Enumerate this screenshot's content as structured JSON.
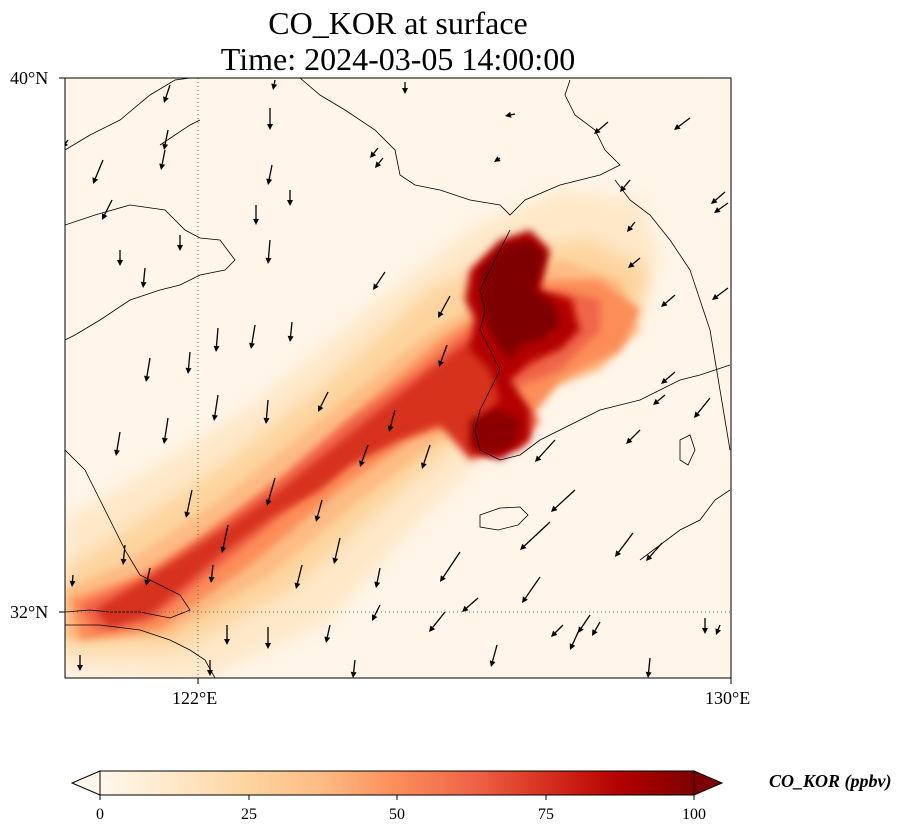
{
  "title_line1": "CO_KOR at surface",
  "title_line2": "Time: 2024-03-05 14:00:00",
  "map": {
    "lon_range": [
      120,
      130
    ],
    "lat_range": [
      31,
      40
    ],
    "gridlines": {
      "lons": [
        122
      ],
      "lats": [
        32
      ],
      "style": "dotted"
    },
    "lon_tick_labels": [
      "122°E",
      "130°E"
    ],
    "lat_tick_labels": [
      "40°N",
      "32°N"
    ],
    "field": "CO_KOR",
    "plume_description": "high-concentration band from Yangtze delta (SW) to Korean peninsula west coast (NE)",
    "wind_vectors": "black arrows, generally southward / southwestward"
  },
  "colorbar": {
    "label": "CO_KOR (ppbv)",
    "min": 0,
    "max": 100,
    "ticks": [
      "0",
      "25",
      "50",
      "75",
      "100"
    ],
    "extend": "both",
    "colormap": "OrRd",
    "colors": [
      "#fff7ec",
      "#fee8c8",
      "#fdd49e",
      "#fdbb84",
      "#fc8d59",
      "#ef6548",
      "#d7301f",
      "#b30000",
      "#7f0000"
    ]
  }
}
